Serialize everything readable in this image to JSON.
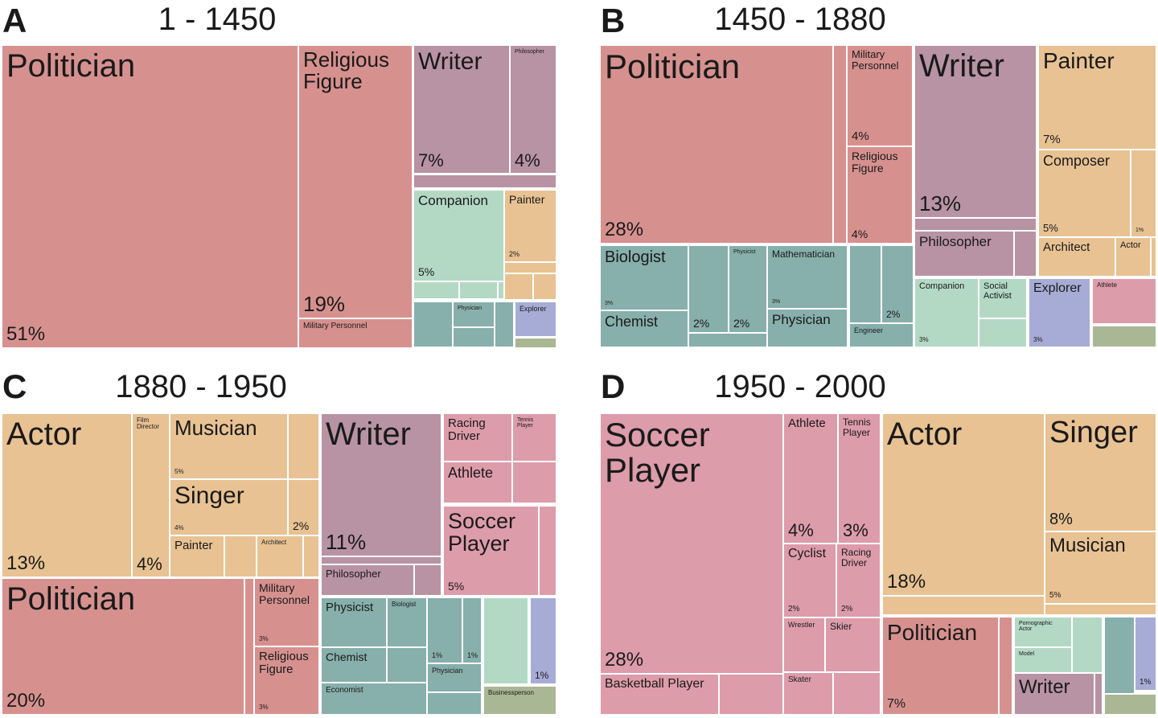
{
  "palette": {
    "red": "#d6918f",
    "purple": "#b893a3",
    "orange": "#e8c293",
    "green": "#b3d9c5",
    "teal": "#87afac",
    "blue": "#a7acd6",
    "pink": "#dd9caa",
    "olive": "#a9b794"
  },
  "chart_data": {
    "type": "treemap",
    "panels": [
      {
        "letter": "A",
        "title": "1 - 1450",
        "cells": [
          {
            "label": "Politician",
            "pct": "51%",
            "color": "red"
          },
          {
            "label": "Religious\nFigure",
            "pct": "19%",
            "color": "red"
          },
          {
            "label": "Military Personnel",
            "pct": "",
            "color": "red"
          },
          {
            "label": "Writer",
            "pct": "7%",
            "color": "purple"
          },
          {
            "label": "Philosopher",
            "pct": "4%",
            "color": "purple"
          },
          {
            "label": "",
            "pct": "",
            "color": "purple"
          },
          {
            "label": "Companion",
            "pct": "5%",
            "color": "green"
          },
          {
            "label": "",
            "pct": "",
            "color": "green"
          },
          {
            "label": "",
            "pct": "",
            "color": "green"
          },
          {
            "label": "",
            "pct": "",
            "color": "green"
          },
          {
            "label": "Painter",
            "pct": "2%",
            "color": "orange"
          },
          {
            "label": "",
            "pct": "",
            "color": "orange"
          },
          {
            "label": "",
            "pct": "",
            "color": "orange"
          },
          {
            "label": "",
            "pct": "",
            "color": "orange"
          },
          {
            "label": "",
            "pct": "",
            "color": "teal"
          },
          {
            "label": "Physician",
            "pct": "",
            "color": "teal"
          },
          {
            "label": "",
            "pct": "",
            "color": "teal"
          },
          {
            "label": "",
            "pct": "",
            "color": "teal"
          },
          {
            "label": "Explorer",
            "pct": "",
            "color": "blue"
          },
          {
            "label": "",
            "pct": "",
            "color": "olive"
          }
        ]
      },
      {
        "letter": "B",
        "title": "1450 - 1880",
        "cells": [
          {
            "label": "Politician",
            "pct": "28%",
            "color": "red"
          },
          {
            "label": "",
            "pct": "",
            "color": "red"
          },
          {
            "label": "Military\nPersonnel",
            "pct": "4%",
            "color": "red"
          },
          {
            "label": "Religious\nFigure",
            "pct": "4%",
            "color": "red"
          },
          {
            "label": "Writer",
            "pct": "13%",
            "color": "purple"
          },
          {
            "label": "",
            "pct": "",
            "color": "purple"
          },
          {
            "label": "Philosopher",
            "pct": "",
            "color": "purple"
          },
          {
            "label": "",
            "pct": "",
            "color": "purple"
          },
          {
            "label": "Painter",
            "pct": "7%",
            "color": "orange"
          },
          {
            "label": "Composer",
            "pct": "5%",
            "color": "orange"
          },
          {
            "label": "",
            "pct": "1%",
            "color": "orange"
          },
          {
            "label": "Architect",
            "pct": "",
            "color": "orange"
          },
          {
            "label": "Actor",
            "pct": "",
            "color": "orange"
          },
          {
            "label": "",
            "pct": "",
            "color": "orange"
          },
          {
            "label": "Biologist",
            "pct": "3%",
            "color": "teal"
          },
          {
            "label": "Chemist",
            "pct": "",
            "color": "teal"
          },
          {
            "label": "",
            "pct": "2%",
            "color": "teal"
          },
          {
            "label": "Physicist",
            "pct": "2%",
            "color": "teal"
          },
          {
            "label": "",
            "pct": "",
            "color": "teal"
          },
          {
            "label": "Mathematician",
            "pct": "3%",
            "color": "teal"
          },
          {
            "label": "Physician",
            "pct": "",
            "color": "teal"
          },
          {
            "label": "",
            "pct": "",
            "color": "teal"
          },
          {
            "label": "",
            "pct": "2%",
            "color": "teal"
          },
          {
            "label": "Engineer",
            "pct": "",
            "color": "teal"
          },
          {
            "label": "Companion",
            "pct": "3%",
            "color": "green"
          },
          {
            "label": "Social\nActivist",
            "pct": "",
            "color": "green"
          },
          {
            "label": "",
            "pct": "",
            "color": "green"
          },
          {
            "label": "Explorer",
            "pct": "3%",
            "color": "blue"
          },
          {
            "label": "Athlete",
            "pct": "",
            "color": "pink"
          },
          {
            "label": "",
            "pct": "",
            "color": "olive"
          }
        ]
      },
      {
        "letter": "C",
        "title": "1880 - 1950",
        "cells": [
          {
            "label": "Actor",
            "pct": "13%",
            "color": "orange"
          },
          {
            "label": "Film\nDirector",
            "pct": "4%",
            "color": "orange"
          },
          {
            "label": "Musician",
            "pct": "5%",
            "color": "orange"
          },
          {
            "label": "",
            "pct": "",
            "color": "orange"
          },
          {
            "label": "Singer",
            "pct": "4%",
            "color": "orange"
          },
          {
            "label": "",
            "pct": "2%",
            "color": "orange"
          },
          {
            "label": "Painter",
            "pct": "",
            "color": "orange"
          },
          {
            "label": "",
            "pct": "",
            "color": "orange"
          },
          {
            "label": "Architect",
            "pct": "",
            "color": "orange"
          },
          {
            "label": "",
            "pct": "",
            "color": "orange"
          },
          {
            "label": "Politician",
            "pct": "20%",
            "color": "red"
          },
          {
            "label": "",
            "pct": "",
            "color": "red"
          },
          {
            "label": "Military\nPersonnel",
            "pct": "3%",
            "color": "red"
          },
          {
            "label": "Religious\nFigure",
            "pct": "3%",
            "color": "red"
          },
          {
            "label": "Writer",
            "pct": "11%",
            "color": "purple"
          },
          {
            "label": "",
            "pct": "",
            "color": "purple"
          },
          {
            "label": "Philosopher",
            "pct": "",
            "color": "purple"
          },
          {
            "label": "",
            "pct": "",
            "color": "purple"
          },
          {
            "label": "Racing\nDriver",
            "pct": "",
            "color": "pink"
          },
          {
            "label": "Tennis\nPlayer",
            "pct": "",
            "color": "pink"
          },
          {
            "label": "Athlete",
            "pct": "",
            "color": "pink"
          },
          {
            "label": "",
            "pct": "",
            "color": "pink"
          },
          {
            "label": "Soccer\nPlayer",
            "pct": "5%",
            "color": "pink"
          },
          {
            "label": "",
            "pct": "",
            "color": "pink"
          },
          {
            "label": "Physicist",
            "pct": "",
            "color": "teal"
          },
          {
            "label": "Biologist",
            "pct": "",
            "color": "teal"
          },
          {
            "label": "Chemist",
            "pct": "",
            "color": "teal"
          },
          {
            "label": "",
            "pct": "",
            "color": "teal"
          },
          {
            "label": "Economist",
            "pct": "",
            "color": "teal"
          },
          {
            "label": "",
            "pct": "1%",
            "color": "teal"
          },
          {
            "label": "",
            "pct": "1%",
            "color": "teal"
          },
          {
            "label": "Physician",
            "pct": "",
            "color": "teal"
          },
          {
            "label": "",
            "pct": "",
            "color": "teal"
          },
          {
            "label": "",
            "pct": "",
            "color": "green"
          },
          {
            "label": "",
            "pct": "1%",
            "color": "blue"
          },
          {
            "label": "Businessperson",
            "pct": "",
            "color": "olive"
          }
        ]
      },
      {
        "letter": "D",
        "title": "1950 - 2000",
        "cells": [
          {
            "label": "Soccer\nPlayer",
            "pct": "28%",
            "color": "pink"
          },
          {
            "label": "Basketball Player",
            "pct": "",
            "color": "pink"
          },
          {
            "label": "",
            "pct": "",
            "color": "pink"
          },
          {
            "label": "Athlete",
            "pct": "4%",
            "color": "pink"
          },
          {
            "label": "Tennis\nPlayer",
            "pct": "3%",
            "color": "pink"
          },
          {
            "label": "Cyclist",
            "pct": "2%",
            "color": "pink"
          },
          {
            "label": "Racing\nDriver",
            "pct": "2%",
            "color": "pink"
          },
          {
            "label": "Wrestler",
            "pct": "",
            "color": "pink"
          },
          {
            "label": "Skier",
            "pct": "",
            "color": "pink"
          },
          {
            "label": "Skater",
            "pct": "",
            "color": "pink"
          },
          {
            "label": "",
            "pct": "",
            "color": "pink"
          },
          {
            "label": "Actor",
            "pct": "18%",
            "color": "orange"
          },
          {
            "label": "",
            "pct": "",
            "color": "orange"
          },
          {
            "label": "Singer",
            "pct": "8%",
            "color": "orange"
          },
          {
            "label": "Musician",
            "pct": "5%",
            "color": "orange"
          },
          {
            "label": "",
            "pct": "",
            "color": "orange"
          },
          {
            "label": "Politician",
            "pct": "7%",
            "color": "red"
          },
          {
            "label": "",
            "pct": "",
            "color": "red"
          },
          {
            "label": "Pornographic\nActor",
            "pct": "",
            "color": "green"
          },
          {
            "label": "Model",
            "pct": "",
            "color": "green"
          },
          {
            "label": "",
            "pct": "",
            "color": "green"
          },
          {
            "label": "",
            "pct": "",
            "color": "teal"
          },
          {
            "label": "",
            "pct": "1%",
            "color": "blue"
          },
          {
            "label": "Writer",
            "pct": "",
            "color": "purple"
          },
          {
            "label": "",
            "pct": "",
            "color": "purple"
          },
          {
            "label": "",
            "pct": "",
            "color": "olive"
          }
        ]
      }
    ]
  }
}
